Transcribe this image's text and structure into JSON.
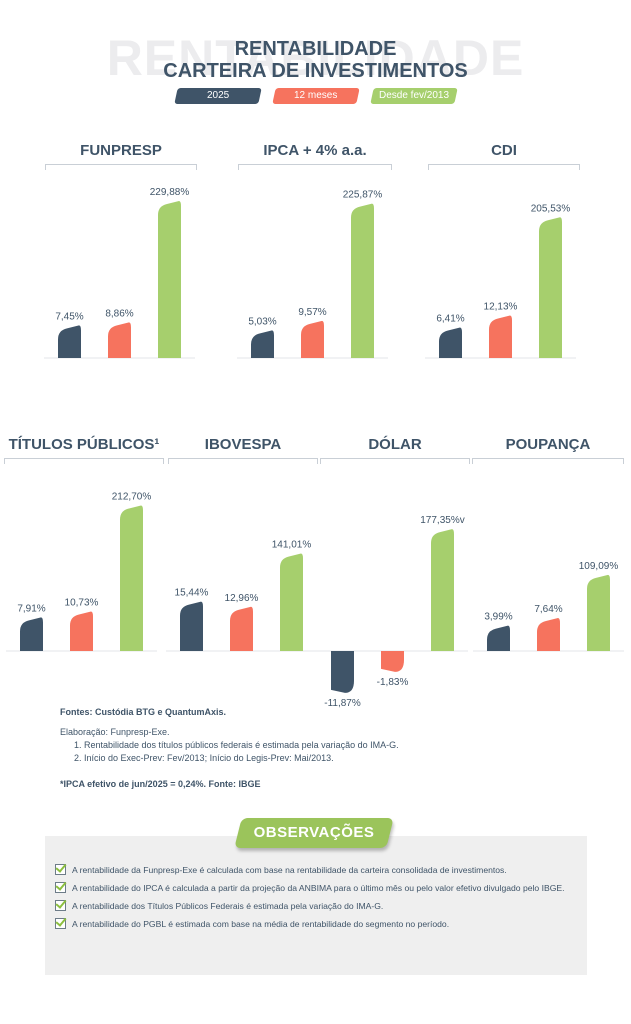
{
  "header": {
    "watermark": "RENTABILIDADE",
    "title_line1": "RENTABILIDADE",
    "title_line2": "CARTEIRA DE INVESTIMENTOS"
  },
  "legend": [
    {
      "label": "2025",
      "color": "#3f5468"
    },
    {
      "label": "12 meses",
      "color": "#f6735e"
    },
    {
      "label": "Desde fev/2013",
      "color": "#a6cf6d"
    }
  ],
  "colors": {
    "s2025": "#3f5468",
    "s12m": "#f6735e",
    "sdesde": "#a6cf6d"
  },
  "chart_data": [
    {
      "type": "bar",
      "title": "FUNPRESP",
      "categories": [
        "2025",
        "12 meses",
        "Desde fev/2013"
      ],
      "values": [
        7.45,
        8.86,
        229.88
      ],
      "labels": [
        "7,45%",
        "8,86%",
        "229,88%"
      ]
    },
    {
      "type": "bar",
      "title": "IPCA + 4% a.a.",
      "categories": [
        "2025",
        "12 meses",
        "Desde fev/2013"
      ],
      "values": [
        5.03,
        9.57,
        225.87
      ],
      "labels": [
        "5,03%",
        "9,57%",
        "225,87%"
      ]
    },
    {
      "type": "bar",
      "title": "CDI",
      "categories": [
        "2025",
        "12 meses",
        "Desde fev/2013"
      ],
      "values": [
        6.41,
        12.13,
        205.53
      ],
      "labels": [
        "6,41%",
        "12,13%",
        "205,53%"
      ]
    },
    {
      "type": "bar",
      "title": "TÍTULOS PÚBLICOS¹",
      "categories": [
        "2025",
        "12 meses",
        "Desde fev/2013"
      ],
      "values": [
        7.91,
        10.73,
        212.7
      ],
      "labels": [
        "7,91%",
        "10,73%",
        "212,70%"
      ]
    },
    {
      "type": "bar",
      "title": "IBOVESPA",
      "categories": [
        "2025",
        "12 meses",
        "Desde fev/2013"
      ],
      "values": [
        15.44,
        12.96,
        141.01
      ],
      "labels": [
        "15,44%",
        "12,96%",
        "141,01%"
      ]
    },
    {
      "type": "bar",
      "title": "DÓLAR",
      "categories": [
        "2025",
        "12 meses",
        "Desde fev/2013"
      ],
      "values": [
        -11.87,
        -1.83,
        177.35
      ],
      "labels": [
        "-11,87%",
        "-1,83%",
        "177,35%v"
      ]
    },
    {
      "type": "bar",
      "title": "POUPANÇA",
      "categories": [
        "2025",
        "12 meses",
        "Desde fev/2013"
      ],
      "values": [
        3.99,
        7.64,
        109.09
      ],
      "labels": [
        "3,99%",
        "7,64%",
        "109,09%"
      ]
    }
  ],
  "notes": {
    "fontes": "Fontes: Custódia BTG e QuantumAxis.",
    "elaboracao": "Elaboração: Funpresp-Exe.",
    "note1": "1. Rentabilidade dos títulos públicos federais é estimada pela variação do IMA-G.",
    "note2": "2. Início do Exec-Prev: Fev/2013; Início do Legis-Prev: Mai/2013.",
    "ipca": "*IPCA efetivo de jun/2025 = 0,24%. Fonte: IBGE"
  },
  "observacoes": {
    "title": "OBSERVAÇÕES",
    "items": [
      "A rentabilidade da Funpresp-Exe é calculada com base na rentabilidade da carteira consolidada de investimentos.",
      "A rentabilidade do IPCA é calculada a partir da projeção da ANBIMA para o último mês ou pelo valor efetivo divulgado pelo IBGE.",
      "A rentabilidade dos Títulos Públicos Federais é estimada pela variação do IMA-G.",
      "A rentabilidade do PGBL é estimada com base na média de rentabilidade do segmento no período."
    ]
  }
}
